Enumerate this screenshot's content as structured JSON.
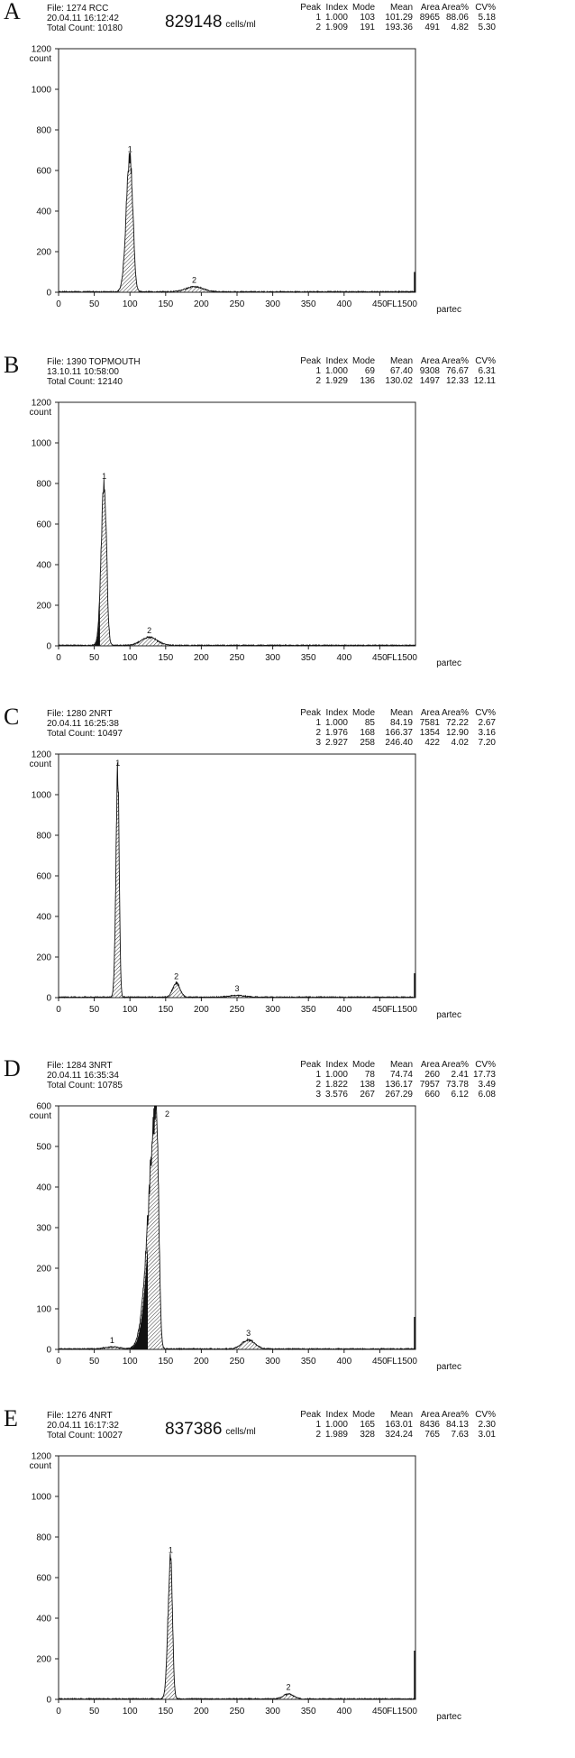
{
  "chart_data": [
    {
      "type": "area",
      "panel_letter": "A",
      "file": "File: 1274 RCC",
      "datetime": "20.04.11  16:12:42",
      "total_count": "Total Count:  10180",
      "cells_value": "829148",
      "cells_unit": "cells/ml",
      "ylabel": "count",
      "x_axis_label": "FL1500",
      "brand": "partec",
      "xlim": [
        0,
        500
      ],
      "ylim": [
        0,
        1200
      ],
      "x_ticks": [
        0,
        50,
        100,
        150,
        200,
        250,
        300,
        350,
        400,
        450
      ],
      "y_ticks": [
        0,
        200,
        400,
        600,
        800,
        1000,
        1200
      ],
      "table_header": [
        "Peak",
        "Index",
        "Mode",
        "Mean",
        "Area",
        "Area%",
        "CV%"
      ],
      "table_rows": [
        [
          "1",
          "1.000",
          "103",
          "101.29",
          "8965",
          "88.06",
          "5.18"
        ],
        [
          "2",
          "1.909",
          "191",
          "193.36",
          "491",
          "4.82",
          "5.30"
        ]
      ],
      "peaks": [
        {
          "label": "1",
          "center": 100,
          "height": 670,
          "sigma": 5.2,
          "left_sigma": 5.2,
          "right_sigma": 4.0
        },
        {
          "label": "2",
          "center": 190,
          "height": 25,
          "sigma": 12,
          "left_sigma": 12,
          "right_sigma": 12
        }
      ],
      "dark_region": null,
      "end_spike": 100
    },
    {
      "type": "area",
      "panel_letter": "B",
      "file": "File: 1390 TOPMOUTH",
      "datetime": "13.10.11  10:58:00",
      "total_count": "Total Count:  12140",
      "cells_value": "",
      "cells_unit": "",
      "ylabel": "count",
      "x_axis_label": "FL1500",
      "brand": "partec",
      "xlim": [
        0,
        500
      ],
      "ylim": [
        0,
        1200
      ],
      "x_ticks": [
        0,
        50,
        100,
        150,
        200,
        250,
        300,
        350,
        400,
        450
      ],
      "y_ticks": [
        0,
        200,
        400,
        600,
        800,
        1000,
        1200
      ],
      "table_header": [
        "Peak",
        "Index",
        "Mode",
        "Mean",
        "Area",
        "Area%",
        "CV%"
      ],
      "table_rows": [
        [
          "1",
          "1.000",
          "69",
          "67.40",
          "9308",
          "76.67",
          "6.31"
        ],
        [
          "2",
          "1.929",
          "136",
          "130.02",
          "1497",
          "12.33",
          "12.11"
        ]
      ],
      "peaks": [
        {
          "label": "1",
          "center": 64,
          "height": 800,
          "sigma": 4.2,
          "left_sigma": 4.2,
          "right_sigma": 3.2
        },
        {
          "label": "2",
          "center": 127,
          "height": 40,
          "sigma": 11,
          "left_sigma": 11,
          "right_sigma": 11
        }
      ],
      "dark_region": [
        45,
        58
      ],
      "end_spike": 0
    },
    {
      "type": "area",
      "panel_letter": "C",
      "file": "File: 1280 2NRT",
      "datetime": "20.04.11  16:25:38",
      "total_count": "Total Count:  10497",
      "cells_value": "",
      "cells_unit": "",
      "ylabel": "count",
      "x_axis_label": "FL1500",
      "brand": "partec",
      "xlim": [
        0,
        500
      ],
      "ylim": [
        0,
        1200
      ],
      "x_ticks": [
        0,
        50,
        100,
        150,
        200,
        250,
        300,
        350,
        400,
        450
      ],
      "y_ticks": [
        0,
        200,
        400,
        600,
        800,
        1000,
        1200
      ],
      "table_header": [
        "Peak",
        "Index",
        "Mode",
        "Mean",
        "Area",
        "Area%",
        "CV%"
      ],
      "table_rows": [
        [
          "1",
          "1.000",
          "85",
          "84.19",
          "7581",
          "72.22",
          "2.67"
        ],
        [
          "2",
          "1.976",
          "168",
          "166.37",
          "1354",
          "12.90",
          "3.16"
        ],
        [
          "3",
          "2.927",
          "258",
          "246.40",
          "422",
          "4.02",
          "7.20"
        ]
      ],
      "peaks": [
        {
          "label": "1",
          "center": 83,
          "height": 1120,
          "sigma": 2.6,
          "left_sigma": 2.6,
          "right_sigma": 2.0
        },
        {
          "label": "2",
          "center": 165,
          "height": 70,
          "sigma": 5.0,
          "left_sigma": 5.0,
          "right_sigma": 5.0
        },
        {
          "label": "3",
          "center": 250,
          "height": 8,
          "sigma": 12,
          "left_sigma": 12,
          "right_sigma": 12
        }
      ],
      "dark_region": null,
      "end_spike": 120
    },
    {
      "type": "area",
      "panel_letter": "D",
      "file": "File: 1284 3NRT",
      "datetime": "20.04.11  16:35:34",
      "total_count": "Total Count:  10785",
      "cells_value": "",
      "cells_unit": "",
      "ylabel": "count",
      "x_axis_label": "FL1500",
      "brand": "partec",
      "xlim": [
        0,
        500
      ],
      "ylim": [
        0,
        600
      ],
      "x_ticks": [
        0,
        50,
        100,
        150,
        200,
        250,
        300,
        350,
        400,
        450
      ],
      "y_ticks": [
        0,
        100,
        200,
        300,
        400,
        500,
        600
      ],
      "table_header": [
        "Peak",
        "Index",
        "Mode",
        "Mean",
        "Area",
        "Area%",
        "CV%"
      ],
      "table_rows": [
        [
          "1",
          "1.000",
          "78",
          "74.74",
          "260",
          "2.41",
          "17.73"
        ],
        [
          "2",
          "1.822",
          "138",
          "136.17",
          "7957",
          "73.78",
          "3.49"
        ],
        [
          "3",
          "3.576",
          "267",
          "267.29",
          "660",
          "6.12",
          "6.08"
        ]
      ],
      "peaks": [
        {
          "label": "1",
          "center": 75,
          "height": 5,
          "sigma": 10,
          "left_sigma": 10,
          "right_sigma": 10
        },
        {
          "label": "2",
          "center": 137,
          "height": 590,
          "sigma": 4.2,
          "left_sigma": 11,
          "right_sigma": 3.2
        },
        {
          "label": "3",
          "center": 266,
          "height": 22,
          "sigma": 9,
          "left_sigma": 9,
          "right_sigma": 9
        }
      ],
      "dark_region": [
        100,
        125
      ],
      "end_spike": 80
    },
    {
      "type": "area",
      "panel_letter": "E",
      "file": "File: 1276 4NRT",
      "datetime": "20.04.11  16:17:32",
      "total_count": "Total Count:  10027",
      "cells_value": "837386",
      "cells_unit": "cells/ml",
      "ylabel": "count",
      "x_axis_label": "FL1500",
      "brand": "partec",
      "xlim": [
        0,
        500
      ],
      "ylim": [
        0,
        1200
      ],
      "x_ticks": [
        0,
        50,
        100,
        150,
        200,
        250,
        300,
        350,
        400,
        450
      ],
      "y_ticks": [
        0,
        200,
        400,
        600,
        800,
        1000,
        1200
      ],
      "table_header": [
        "Peak",
        "Index",
        "Mode",
        "Mean",
        "Area",
        "Area%",
        "CV%"
      ],
      "table_rows": [
        [
          "1",
          "1.000",
          "165",
          "163.01",
          "8436",
          "84.13",
          "2.30"
        ],
        [
          "2",
          "1.989",
          "328",
          "324.24",
          "765",
          "7.63",
          "3.01"
        ]
      ],
      "peaks": [
        {
          "label": "1",
          "center": 157,
          "height": 700,
          "sigma": 3.6,
          "left_sigma": 3.6,
          "right_sigma": 2.6
        },
        {
          "label": "2",
          "center": 322,
          "height": 25,
          "sigma": 7,
          "left_sigma": 7,
          "right_sigma": 7
        }
      ],
      "dark_region": null,
      "end_spike": 240
    }
  ]
}
